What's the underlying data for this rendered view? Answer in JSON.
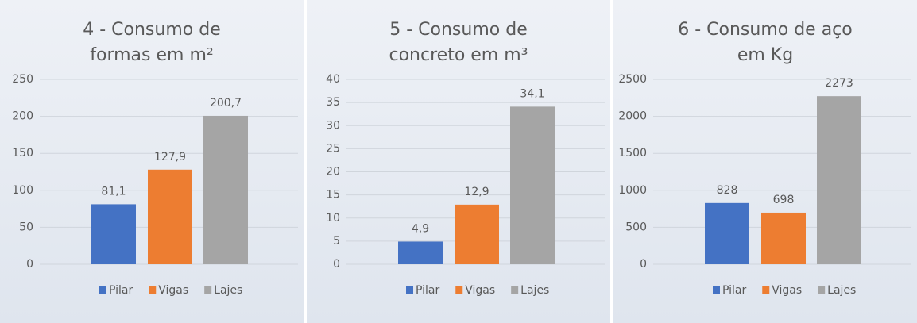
{
  "chart_data": [
    {
      "type": "bar",
      "title": "4 - Consumo de formas em m²",
      "series": [
        {
          "name": "Pilar",
          "color": "#4472c4",
          "values": [
            81.1
          ],
          "value_labels": [
            "81,1"
          ]
        },
        {
          "name": "Vigas",
          "color": "#ed7d31",
          "values": [
            127.9
          ],
          "value_labels": [
            "127,9"
          ]
        },
        {
          "name": "Lajes",
          "color": "#a5a5a5",
          "values": [
            200.7
          ],
          "value_labels": [
            "200,7"
          ]
        }
      ],
      "ylim": [
        0,
        250
      ],
      "yticks": [
        0,
        50,
        100,
        150,
        200,
        250
      ],
      "grid": true,
      "legend": "bottom"
    },
    {
      "type": "bar",
      "title": "5 - Consumo de concreto em m³",
      "series": [
        {
          "name": "Pilar",
          "color": "#4472c4",
          "values": [
            4.9
          ],
          "value_labels": [
            "4,9"
          ]
        },
        {
          "name": "Vigas",
          "color": "#ed7d31",
          "values": [
            12.9
          ],
          "value_labels": [
            "12,9"
          ]
        },
        {
          "name": "Lajes",
          "color": "#a5a5a5",
          "values": [
            34.1
          ],
          "value_labels": [
            "34,1"
          ]
        }
      ],
      "ylim": [
        0,
        40
      ],
      "yticks": [
        0,
        5,
        10,
        15,
        20,
        25,
        30,
        35,
        40
      ],
      "grid": true,
      "legend": "bottom"
    },
    {
      "type": "bar",
      "title": "6 - Consumo de aço em Kg",
      "series": [
        {
          "name": "Pilar",
          "color": "#4472c4",
          "values": [
            828
          ]
        },
        {
          "name": "Vigas",
          "color": "#ed7d31",
          "values": [
            698
          ]
        },
        {
          "name": "Lajes",
          "color": "#a5a5a5",
          "values": [
            2273
          ]
        }
      ],
      "ylim": [
        0,
        2500
      ],
      "yticks": [
        0,
        500,
        1000,
        1500,
        2000,
        2500
      ],
      "grid": true,
      "legend": "bottom"
    }
  ]
}
